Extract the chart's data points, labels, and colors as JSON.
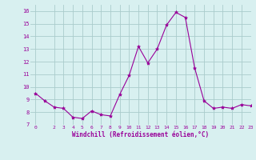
{
  "x": [
    0,
    1,
    2,
    3,
    4,
    5,
    6,
    7,
    8,
    9,
    10,
    11,
    12,
    13,
    14,
    15,
    16,
    17,
    18,
    19,
    20,
    21,
    22,
    23
  ],
  "y": [
    9.5,
    8.9,
    8.4,
    8.3,
    7.6,
    7.5,
    8.1,
    7.8,
    7.7,
    9.4,
    10.9,
    13.2,
    11.9,
    13.0,
    14.9,
    15.9,
    15.5,
    11.5,
    8.9,
    8.3,
    8.4,
    8.3,
    8.6,
    8.5
  ],
  "line_color": "#990099",
  "marker": "*",
  "marker_size": 3,
  "bg_color": "#d8f0f0",
  "grid_color": "#aacccc",
  "xlabel": "Windchill (Refroidissement éolien,°C)",
  "xlabel_color": "#990099",
  "tick_color": "#990099",
  "xlim": [
    -0.5,
    23
  ],
  "ylim": [
    7,
    16.5
  ],
  "yticks": [
    7,
    8,
    9,
    10,
    11,
    12,
    13,
    14,
    15,
    16
  ],
  "xticks": [
    0,
    2,
    3,
    4,
    5,
    6,
    7,
    8,
    9,
    10,
    11,
    12,
    13,
    14,
    15,
    16,
    17,
    18,
    19,
    20,
    21,
    22,
    23
  ],
  "fig_bg_color": "#d8f0f0"
}
